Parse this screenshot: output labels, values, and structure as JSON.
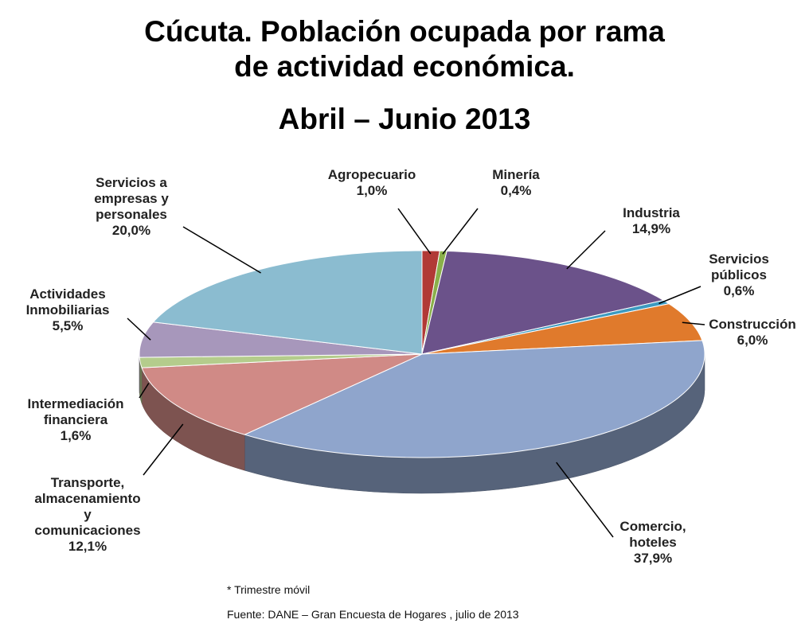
{
  "chart_data": {
    "type": "pie",
    "title": "Cúcuta. Población ocupada por rama\nde actividad económica.",
    "subtitle": "Abril – Junio 2013",
    "categories": [
      "Agropecuario",
      "Minería",
      "Industria",
      "Servicios\npúblicos",
      "Construcción",
      "Comercio,\nhoteles",
      "Transporte,\nalmacenamiento\ny\ncomunicaciones",
      "Intermediación\nfinanciera",
      "Actividades\nInmobiliarias",
      "Servicios a\nempresas y\npersonales"
    ],
    "values": [
      1.0,
      0.4,
      14.9,
      0.6,
      6.0,
      37.9,
      12.1,
      1.6,
      5.5,
      20.0
    ],
    "value_labels": [
      "1,0%",
      "0,4%",
      "14,9%",
      "0,6%",
      "6,0%",
      "37,9%",
      "12,1%",
      "1,6%",
      "5,5%",
      "20,0%"
    ],
    "colors": [
      "#b13a36",
      "#8ab04a",
      "#6b528a",
      "#3c9ac0",
      "#e07a2c",
      "#8fa5cc",
      "#d08a86",
      "#b4cc8c",
      "#a797bb",
      "#8bbcd0"
    ],
    "notes": [
      "* Trimestre móvil",
      "Fuente: DANE – Gran Encuesta de Hogares , julio de 2013"
    ]
  }
}
